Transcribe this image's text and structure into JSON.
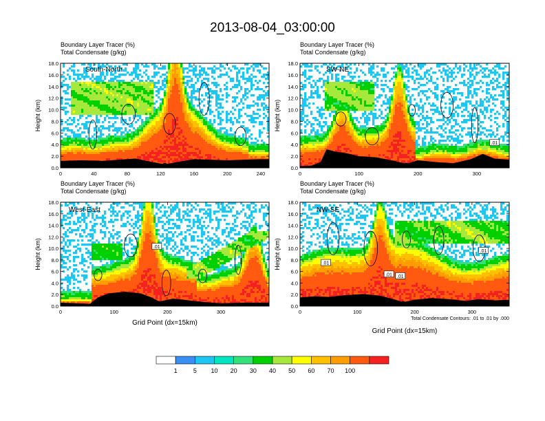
{
  "title": "2013-08-04_03:00:00",
  "colors": {
    "background": "#ffffff",
    "axis": "#000000",
    "contour": "#000000",
    "fill": [
      "#ffffff",
      "#3a8ff5",
      "#1ec6f2",
      "#00e6c0",
      "#33e07a",
      "#00d000",
      "#a6e83c",
      "#ffff00",
      "#ffc000",
      "#ff9c00",
      "#ff5a10",
      "#f52020"
    ]
  },
  "colorbar": {
    "labels": [
      "1",
      "5",
      "10",
      "20",
      "30",
      "40",
      "50",
      "60",
      "70",
      "100"
    ]
  },
  "chart_data": [
    {
      "type": "heatmap",
      "label_line1": "Boundary Layer Tracer    (%)",
      "label_line2": "Total Condensate    (g/kg)",
      "panel_label": "South-North",
      "ylabel": "Height (km)",
      "xlabel": "",
      "xlim": [
        0,
        250
      ],
      "ylim": [
        0,
        18
      ],
      "xticks": [
        0,
        40,
        80,
        120,
        160,
        200,
        240
      ],
      "yticks": [
        "0.0",
        "2.0",
        "4.0",
        "6.0",
        "8.0",
        "10.0",
        "12.0",
        "14.0",
        "16.0",
        "18.0"
      ],
      "marker_x": 125,
      "terrain": [
        [
          0,
          1.2
        ],
        [
          25,
          1.3
        ],
        [
          50,
          1.2
        ],
        [
          70,
          1.4
        ],
        [
          90,
          1.6
        ],
        [
          110,
          1.0
        ],
        [
          125,
          0.6
        ],
        [
          140,
          1.0
        ],
        [
          160,
          1.5
        ],
        [
          180,
          1.4
        ],
        [
          200,
          1.3
        ],
        [
          220,
          1.4
        ],
        [
          240,
          1.5
        ],
        [
          250,
          1.5
        ]
      ],
      "contour_labels": [],
      "footnote": "",
      "grid": false
    },
    {
      "type": "heatmap",
      "label_line1": "Boundary Layer Tracer    (%)",
      "label_line2": "Total Condensate    (g/kg)",
      "panel_label": "SW-NE",
      "ylabel": "Height (km)",
      "xlabel": "",
      "xlim": [
        0,
        355
      ],
      "ylim": [
        0,
        18
      ],
      "xticks": [
        0,
        100,
        200,
        300
      ],
      "yticks": [
        "0.0",
        "2.0",
        "4.0",
        "6.0",
        "8.0",
        "10.0",
        "12.0",
        "14.0",
        "16.0",
        "18.0"
      ],
      "marker_x": 180,
      "terrain": [
        [
          0,
          0.3
        ],
        [
          20,
          0.4
        ],
        [
          35,
          1.0
        ],
        [
          45,
          3.2
        ],
        [
          60,
          2.8
        ],
        [
          80,
          2.5
        ],
        [
          100,
          2.0
        ],
        [
          130,
          1.8
        ],
        [
          160,
          1.2
        ],
        [
          180,
          0.7
        ],
        [
          200,
          1.3
        ],
        [
          230,
          1.0
        ],
        [
          260,
          0.8
        ],
        [
          290,
          1.5
        ],
        [
          310,
          2.4
        ],
        [
          330,
          1.6
        ],
        [
          355,
          1.4
        ]
      ],
      "contour_labels": [
        {
          "x": 330,
          "y": 4.3,
          "text": ".01"
        }
      ],
      "footnote": "",
      "grid": false
    },
    {
      "type": "heatmap",
      "label_line1": "Boundary Layer Tracer    (%)",
      "label_line2": "Total Condensate    (g/kg)",
      "panel_label": "West-East",
      "ylabel": "Height (km)",
      "xlabel": "Grid Point (dx=15km)",
      "xlim": [
        0,
        390
      ],
      "ylim": [
        0,
        18
      ],
      "xticks": [
        0,
        100,
        200,
        300
      ],
      "yticks": [
        "0.0",
        "2.0",
        "4.0",
        "6.0",
        "8.0",
        "10.0",
        "12.0",
        "14.0",
        "16.0",
        "18.0"
      ],
      "marker_x": 185,
      "terrain": [
        [
          0,
          0.6
        ],
        [
          30,
          0.5
        ],
        [
          55,
          0.4
        ],
        [
          70,
          1.5
        ],
        [
          90,
          2.2
        ],
        [
          120,
          2.5
        ],
        [
          150,
          2.2
        ],
        [
          170,
          1.5
        ],
        [
          185,
          0.8
        ],
        [
          210,
          1.3
        ],
        [
          240,
          1.0
        ],
        [
          270,
          0.7
        ],
        [
          300,
          0.5
        ],
        [
          340,
          0.6
        ],
        [
          390,
          0.6
        ]
      ],
      "contour_labels": [
        {
          "x": 180,
          "y": 10.3,
          "text": ".01"
        }
      ],
      "footnote": "",
      "grid": false
    },
    {
      "type": "heatmap",
      "label_line1": "Boundary Layer Tracer    (%)",
      "label_line2": "Total Condensate    (g/kg)",
      "panel_label": "NW-SE",
      "ylabel": "Height (km)",
      "xlabel": "Grid Point (dx=15km)",
      "xlim": [
        0,
        365
      ],
      "ylim": [
        0,
        18
      ],
      "xticks": [
        0,
        100,
        200,
        300
      ],
      "yticks": [
        "0.0",
        "2.0",
        "4.0",
        "6.0",
        "8.0",
        "10.0",
        "12.0",
        "14.0",
        "16.0",
        "18.0"
      ],
      "marker_x": 180,
      "terrain": [
        [
          0,
          1.5
        ],
        [
          25,
          1.7
        ],
        [
          50,
          1.6
        ],
        [
          80,
          1.9
        ],
        [
          110,
          2.1
        ],
        [
          140,
          1.8
        ],
        [
          160,
          1.3
        ],
        [
          180,
          0.7
        ],
        [
          200,
          1.1
        ],
        [
          230,
          1.4
        ],
        [
          260,
          1.2
        ],
        [
          290,
          0.9
        ],
        [
          310,
          1.2
        ],
        [
          340,
          1.0
        ],
        [
          365,
          1.1
        ]
      ],
      "contour_labels": [
        {
          "x": 45,
          "y": 7.5,
          "text": ".01"
        },
        {
          "x": 155,
          "y": 5.5,
          "text": ".01"
        },
        {
          "x": 175,
          "y": 5.2,
          "text": ".01"
        },
        {
          "x": 320,
          "y": 9.6,
          "text": ".01"
        }
      ],
      "footnote": "Total Condensate Contours: .01 to .01 by .000",
      "grid": false
    }
  ]
}
